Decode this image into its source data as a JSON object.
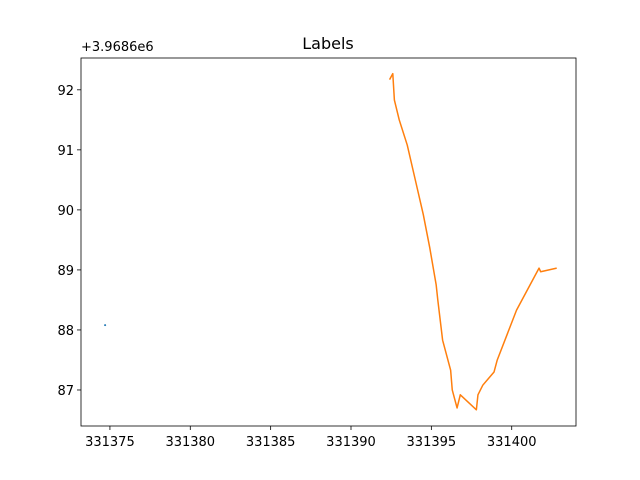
{
  "chart_data": {
    "type": "line",
    "title": "Labels",
    "y_offset_label": "+3.9686e6",
    "xlim": [
      331373.2,
      331404.0
    ],
    "xticks": [
      331375,
      331380,
      331385,
      331390,
      331395,
      331400
    ],
    "ylim": [
      86.4,
      92.53
    ],
    "yticks": [
      87,
      88,
      89,
      90,
      91,
      92
    ],
    "grid": false,
    "series": [
      {
        "color": "#1f77b4",
        "x": [
          331374.7
        ],
        "values": [
          88.08
        ]
      },
      {
        "color": "#ff7f0e",
        "x": [
          331392.4,
          331392.6,
          331392.7,
          331393.0,
          331393.5,
          331394.0,
          331394.5,
          331394.9,
          331395.3,
          331395.4,
          331395.7,
          331396.2,
          331396.3,
          331396.6,
          331396.8,
          331397.8,
          331397.9,
          331398.2,
          331398.9,
          331399.1,
          331400.3,
          331401.7,
          331401.8,
          331402.8
        ],
        "values": [
          92.17,
          92.27,
          91.83,
          91.5,
          91.08,
          90.5,
          89.92,
          89.37,
          88.75,
          88.5,
          87.83,
          87.33,
          87.0,
          86.7,
          86.92,
          86.67,
          86.92,
          87.08,
          87.3,
          87.5,
          88.33,
          89.03,
          88.97,
          89.03
        ]
      }
    ]
  }
}
